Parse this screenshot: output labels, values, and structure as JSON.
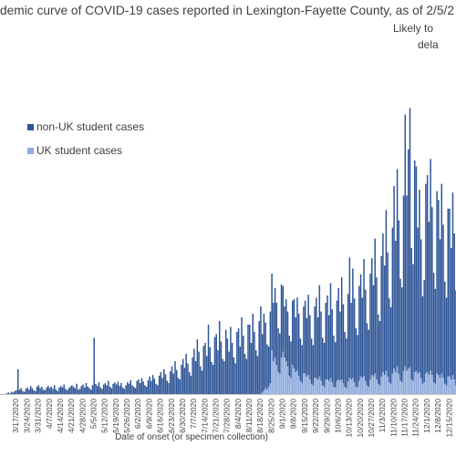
{
  "chart_data": {
    "type": "stacked_bar",
    "title": "demic curve of COVID-19 cases reported in Lexington-Fayette County, as of 2/5/2",
    "annotations": [
      "Likely to",
      "dela"
    ],
    "xlabel": "Date of onset (or specimen collection)",
    "ylim": [
      0,
      520
    ],
    "categories": [
      null,
      null,
      null,
      null,
      null,
      null,
      null,
      "3/17/2020",
      null,
      null,
      null,
      null,
      null,
      null,
      "3/24/2020",
      null,
      null,
      null,
      null,
      null,
      null,
      "3/31/2020",
      null,
      null,
      null,
      null,
      null,
      null,
      "4/7/2020",
      null,
      null,
      null,
      null,
      null,
      null,
      "4/14/2020",
      null,
      null,
      null,
      null,
      null,
      null,
      "4/21/2020",
      null,
      null,
      null,
      null,
      null,
      null,
      "4/28/2020",
      null,
      null,
      null,
      null,
      null,
      null,
      "5/5/2020",
      null,
      null,
      null,
      null,
      null,
      null,
      "5/12/2020",
      null,
      null,
      null,
      null,
      null,
      null,
      "5/19/2020",
      null,
      null,
      null,
      null,
      null,
      null,
      "5/26/2020",
      null,
      null,
      null,
      null,
      null,
      null,
      "6/2/2020",
      null,
      null,
      null,
      null,
      null,
      null,
      "6/9/2020",
      null,
      null,
      null,
      null,
      null,
      null,
      "6/16/2020",
      null,
      null,
      null,
      null,
      null,
      null,
      "6/23/2020",
      null,
      null,
      null,
      null,
      null,
      null,
      "6/30/2020",
      null,
      null,
      null,
      null,
      null,
      null,
      "7/7/2020",
      null,
      null,
      null,
      null,
      null,
      null,
      "7/14/2020",
      null,
      null,
      null,
      null,
      null,
      null,
      "7/21/2020",
      null,
      null,
      null,
      null,
      null,
      null,
      "7/28/2020",
      null,
      null,
      null,
      null,
      null,
      null,
      "8/4/2020",
      null,
      null,
      null,
      null,
      null,
      null,
      "8/11/2020",
      null,
      null,
      null,
      null,
      null,
      null,
      "8/18/2020",
      null,
      null,
      null,
      null,
      null,
      null,
      "8/25/2020",
      null,
      null,
      null,
      null,
      null,
      null,
      "9/1/2020",
      null,
      null,
      null,
      null,
      null,
      null,
      "9/8/2020",
      null,
      null,
      null,
      null,
      null,
      null,
      "9/15/2020",
      null,
      null,
      null,
      null,
      null,
      null,
      "9/22/2020",
      null,
      null,
      null,
      null,
      null,
      null,
      "9/29/2020",
      null,
      null,
      null,
      null,
      null,
      null,
      "10/6/2020",
      null,
      null,
      null,
      null,
      null,
      null,
      "10/13/2020",
      null,
      null,
      null,
      null,
      null,
      null,
      "10/20/2020",
      null,
      null,
      null,
      null,
      null,
      null,
      "10/27/2020",
      null,
      null,
      null,
      null,
      null,
      null,
      "11/3/2020",
      null,
      null,
      null,
      null,
      null,
      null,
      "11/10/2020",
      null,
      null,
      null,
      null,
      null,
      null,
      "11/17/2020",
      null,
      null,
      null,
      null,
      null,
      null,
      "11/24/2020",
      null,
      null,
      null,
      null,
      null,
      null,
      "12/1/2020",
      null,
      null,
      null,
      null,
      null,
      null,
      "12/8/2020",
      null,
      null,
      null,
      null,
      null,
      null,
      "12/15/2020",
      null,
      null,
      null,
      null
    ],
    "series": [
      {
        "name": "non-UK student cases",
        "color": "#2e5597",
        "values": [
          0,
          1,
          2,
          1,
          3,
          2,
          4,
          5,
          34,
          6,
          8,
          4,
          3,
          7,
          9,
          6,
          11,
          8,
          5,
          4,
          10,
          12,
          8,
          10,
          6,
          5,
          9,
          11,
          8,
          10,
          7,
          12,
          6,
          4,
          9,
          11,
          9,
          13,
          7,
          5,
          8,
          10,
          12,
          10,
          8,
          14,
          6,
          7,
          11,
          13,
          9,
          15,
          10,
          8,
          6,
          12,
          77,
          14,
          11,
          16,
          9,
          7,
          13,
          15,
          12,
          18,
          10,
          8,
          14,
          16,
          13,
          17,
          11,
          15,
          9,
          7,
          12,
          16,
          14,
          19,
          12,
          10,
          8,
          18,
          20,
          15,
          22,
          17,
          12,
          10,
          19,
          24,
          18,
          26,
          21,
          14,
          12,
          25,
          30,
          22,
          34,
          27,
          18,
          15,
          31,
          38,
          28,
          45,
          33,
          22,
          20,
          40,
          48,
          36,
          55,
          42,
          30,
          25,
          50,
          62,
          45,
          75,
          58,
          38,
          32,
          66,
          70,
          52,
          95,
          64,
          44,
          40,
          78,
          82,
          60,
          100,
          72,
          48,
          45,
          88,
          76,
          58,
          92,
          70,
          50,
          42,
          85,
          90,
          65,
          105,
          80,
          55,
          48,
          95,
          95,
          70,
          110,
          85,
          60,
          52,
          100,
          120,
          80,
          105,
          90,
          62,
          55,
          98,
          105,
          80,
          95,
          85,
          60,
          55,
          100,
          90,
          70,
          85,
          75,
          55,
          50,
          88,
          95,
          75,
          100,
          85,
          58,
          52,
          92,
          100,
          80,
          110,
          88,
          62,
          55,
          98,
          110,
          85,
          125,
          95,
          65,
          60,
          105,
          115,
          90,
          130,
          100,
          70,
          62,
          110,
          125,
          95,
          140,
          108,
          75,
          68,
          120,
          165,
          105,
          150,
          115,
          80,
          72,
          130,
          140,
          110,
          160,
          125,
          85,
          78,
          145,
          160,
          125,
          185,
          140,
          95,
          88,
          165,
          190,
          150,
          220,
          170,
          115,
          105,
          200,
          250,
          180,
          270,
          210,
          140,
          130,
          240,
          345,
          240,
          300,
          355,
          180,
          160,
          290,
          280,
          200,
          250,
          190,
          120,
          140,
          260,
          270,
          210,
          290,
          230,
          150,
          130,
          250,
          240,
          190,
          260,
          210,
          140,
          120,
          230,
          230,
          180,
          250,
          200,
          130
        ]
      },
      {
        "name": "UK student cases",
        "color": "#8faadc",
        "values": [
          0,
          0,
          0,
          0,
          0,
          0,
          0,
          0,
          0,
          0,
          0,
          0,
          0,
          0,
          0,
          0,
          0,
          0,
          0,
          0,
          0,
          0,
          0,
          0,
          0,
          0,
          0,
          0,
          0,
          0,
          0,
          0,
          0,
          0,
          0,
          0,
          0,
          0,
          0,
          0,
          0,
          0,
          0,
          0,
          0,
          0,
          0,
          0,
          0,
          0,
          0,
          0,
          0,
          0,
          0,
          0,
          0,
          0,
          0,
          0,
          0,
          0,
          0,
          0,
          0,
          0,
          0,
          0,
          0,
          0,
          0,
          0,
          0,
          0,
          0,
          0,
          0,
          0,
          0,
          0,
          0,
          0,
          0,
          0,
          0,
          0,
          0,
          0,
          0,
          0,
          0,
          0,
          0,
          0,
          0,
          0,
          0,
          0,
          0,
          0,
          0,
          0,
          0,
          0,
          0,
          0,
          0,
          0,
          0,
          0,
          0,
          0,
          0,
          0,
          0,
          0,
          0,
          0,
          0,
          0,
          0,
          0,
          0,
          0,
          0,
          0,
          0,
          0,
          0,
          0,
          0,
          0,
          0,
          0,
          0,
          0,
          0,
          0,
          0,
          0,
          0,
          0,
          0,
          0,
          0,
          0,
          0,
          0,
          0,
          0,
          0,
          0,
          0,
          0,
          0,
          0,
          0,
          0,
          0,
          0,
          0,
          0,
          2,
          5,
          8,
          6,
          10,
          15,
          60,
          45,
          50,
          40,
          30,
          28,
          50,
          58,
          50,
          45,
          38,
          25,
          22,
          40,
          35,
          30,
          32,
          25,
          18,
          15,
          28,
          28,
          24,
          26,
          20,
          14,
          12,
          22,
          22,
          20,
          24,
          18,
          12,
          10,
          20,
          20,
          18,
          22,
          16,
          10,
          9,
          18,
          20,
          18,
          20,
          15,
          10,
          8,
          17,
          22,
          20,
          22,
          16,
          10,
          9,
          18,
          24,
          22,
          25,
          18,
          12,
          10,
          20,
          26,
          24,
          28,
          20,
          14,
          12,
          24,
          30,
          26,
          32,
          24,
          16,
          14,
          28,
          35,
          30,
          38,
          28,
          18,
          16,
          32,
          38,
          32,
          35,
          37,
          20,
          18,
          30,
          32,
          28,
          30,
          22,
          14,
          16,
          28,
          30,
          26,
          32,
          26,
          16,
          14,
          28,
          26,
          22,
          28,
          22,
          14,
          12,
          24,
          24,
          20,
          26,
          20,
          12
        ]
      }
    ]
  }
}
